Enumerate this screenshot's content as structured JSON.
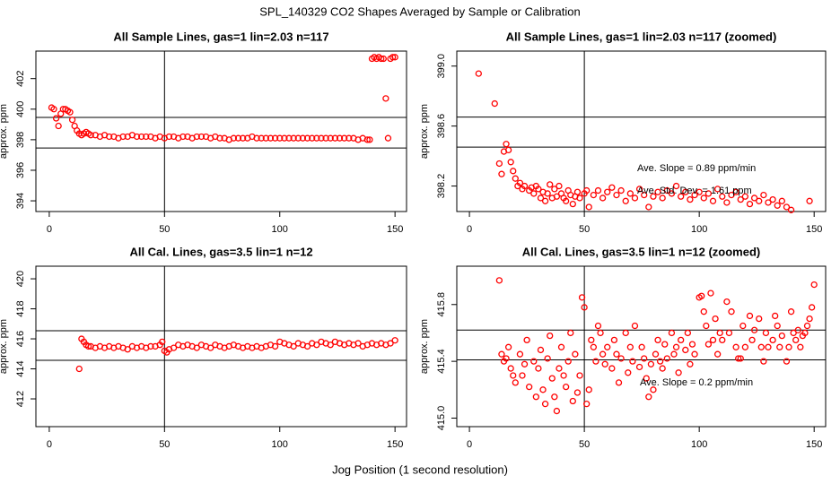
{
  "title": "SPL_140329  CO2 Shapes Averaged by Sample or Calibration",
  "xlabel": "Jog Position (1 second resolution)",
  "chart_data": [
    {
      "type": "scatter",
      "title": "All Sample Lines, gas=1 lin=2.03 n=117",
      "ylabel": "approx. ppm",
      "color": "#ff0000",
      "x": [
        1,
        2,
        3,
        4,
        5,
        6,
        7,
        8,
        9,
        10,
        11,
        12,
        13,
        14,
        15,
        16,
        17,
        18,
        20,
        22,
        24,
        26,
        28,
        30,
        32,
        34,
        36,
        38,
        40,
        42,
        44,
        46,
        48,
        50,
        52,
        54,
        56,
        58,
        60,
        62,
        64,
        66,
        68,
        70,
        72,
        74,
        76,
        78,
        80,
        82,
        84,
        86,
        88,
        90,
        92,
        94,
        96,
        98,
        100,
        102,
        104,
        106,
        108,
        110,
        112,
        114,
        116,
        118,
        120,
        122,
        124,
        126,
        128,
        130,
        132,
        134,
        136,
        138,
        139,
        140,
        141,
        142,
        143,
        144,
        145,
        146,
        147,
        148,
        149,
        150
      ],
      "y": [
        400.1,
        400.0,
        399.4,
        398.9,
        399.7,
        400.0,
        400.0,
        399.9,
        399.8,
        399.3,
        398.9,
        398.6,
        398.4,
        398.3,
        398.4,
        398.5,
        398.4,
        398.3,
        398.3,
        398.2,
        398.3,
        398.2,
        398.2,
        398.1,
        398.2,
        398.2,
        398.3,
        398.2,
        398.2,
        398.2,
        398.2,
        398.1,
        398.2,
        398.1,
        398.2,
        398.2,
        398.1,
        398.2,
        398.2,
        398.1,
        398.2,
        398.2,
        398.2,
        398.1,
        398.2,
        398.1,
        398.1,
        398.0,
        398.1,
        398.1,
        398.1,
        398.1,
        398.2,
        398.1,
        398.1,
        398.1,
        398.1,
        398.1,
        398.1,
        398.1,
        398.1,
        398.1,
        398.1,
        398.1,
        398.1,
        398.1,
        398.1,
        398.1,
        398.1,
        398.1,
        398.1,
        398.1,
        398.1,
        398.1,
        398.1,
        398.0,
        398.1,
        398.0,
        398.0,
        403.3,
        403.4,
        403.3,
        403.4,
        403.3,
        403.3,
        400.7,
        398.1,
        403.3,
        403.4,
        403.4
      ],
      "xlim": [
        -5.8,
        155
      ],
      "ylim": [
        393.3,
        403.8
      ],
      "xticks": [
        0,
        50,
        100,
        150
      ],
      "yticks": [
        394,
        396,
        398,
        400,
        402
      ],
      "hlines": [
        399.46,
        397.46
      ],
      "vlines": [
        50
      ],
      "annotations": []
    },
    {
      "type": "scatter",
      "title": "All Sample Lines, gas=1 lin=2.03 n=117 (zoomed)",
      "ylabel": "approx. ppm",
      "color": "#ff0000",
      "x": [
        4,
        11,
        13,
        14,
        15,
        16,
        17,
        18,
        19,
        20,
        21,
        22,
        23,
        24,
        26,
        27,
        28,
        29,
        30,
        31,
        32,
        33,
        34,
        35,
        36,
        37,
        38,
        39,
        40,
        41,
        42,
        43,
        44,
        45,
        46,
        47,
        48,
        50,
        51,
        52,
        54,
        56,
        58,
        60,
        62,
        64,
        66,
        68,
        70,
        72,
        74,
        76,
        78,
        80,
        82,
        84,
        86,
        88,
        90,
        92,
        94,
        96,
        98,
        100,
        102,
        104,
        106,
        108,
        110,
        112,
        114,
        116,
        118,
        120,
        122,
        124,
        126,
        128,
        130,
        132,
        134,
        136,
        138,
        140,
        148
      ],
      "y": [
        398.95,
        398.75,
        398.35,
        398.28,
        398.43,
        398.48,
        398.44,
        398.36,
        398.3,
        398.25,
        398.2,
        398.22,
        398.18,
        398.2,
        398.17,
        398.19,
        398.15,
        398.2,
        398.18,
        398.12,
        398.16,
        398.1,
        398.15,
        398.21,
        398.12,
        398.18,
        398.13,
        398.2,
        398.15,
        398.12,
        398.1,
        398.17,
        398.14,
        398.08,
        398.13,
        398.16,
        398.12,
        398.15,
        398.17,
        398.06,
        398.14,
        398.17,
        398.12,
        398.16,
        398.19,
        398.14,
        398.17,
        398.1,
        398.15,
        398.12,
        398.18,
        398.14,
        398.06,
        398.13,
        398.16,
        398.12,
        398.17,
        398.15,
        398.2,
        398.13,
        398.16,
        398.11,
        398.14,
        398.16,
        398.12,
        398.15,
        398.1,
        398.18,
        398.13,
        398.09,
        398.14,
        398.16,
        398.11,
        398.13,
        398.08,
        398.12,
        398.1,
        398.14,
        398.09,
        398.11,
        398.07,
        398.1,
        398.06,
        398.04,
        398.1
      ],
      "xlim": [
        -5.5,
        155
      ],
      "ylim": [
        398.03,
        399.1
      ],
      "xticks": [
        0,
        50,
        100,
        150
      ],
      "yticks": [
        398.2,
        {
          "value": 398.6,
          "label": "398.6"
        },
        {
          "value": 399,
          "label": "399.0"
        }
      ],
      "hlines": [
        398.66,
        398.46
      ],
      "vlines": [
        50
      ],
      "annotations": [
        "Ave. Slope =  0.89  ppm/min",
        "Ave. Std. Dev. =  1.61  ppm"
      ]
    },
    {
      "type": "scatter",
      "title": "All Cal. Lines, gas=3.5 lin=1 n=12",
      "ylabel": "approx. ppm",
      "color": "#ff0000",
      "x": [
        13,
        14,
        15,
        16,
        17,
        18,
        20,
        22,
        24,
        26,
        28,
        30,
        32,
        34,
        36,
        38,
        40,
        42,
        44,
        46,
        48,
        49,
        50,
        51,
        52,
        54,
        56,
        58,
        60,
        62,
        64,
        66,
        68,
        70,
        72,
        74,
        76,
        78,
        80,
        82,
        84,
        86,
        88,
        90,
        92,
        94,
        96,
        98,
        100,
        102,
        104,
        106,
        108,
        110,
        112,
        114,
        116,
        118,
        120,
        122,
        124,
        126,
        128,
        130,
        132,
        134,
        136,
        138,
        140,
        142,
        144,
        146,
        148,
        150
      ],
      "y": [
        414.0,
        416.0,
        415.8,
        415.6,
        415.5,
        415.5,
        415.4,
        415.5,
        415.4,
        415.5,
        415.4,
        415.5,
        415.4,
        415.3,
        415.5,
        415.4,
        415.5,
        415.4,
        415.5,
        415.5,
        415.6,
        415.8,
        415.2,
        415.1,
        415.3,
        415.4,
        415.6,
        415.5,
        415.6,
        415.5,
        415.4,
        415.6,
        415.5,
        415.4,
        415.6,
        415.5,
        415.4,
        415.5,
        415.6,
        415.5,
        415.4,
        415.5,
        415.4,
        415.5,
        415.4,
        415.5,
        415.6,
        415.5,
        415.8,
        415.7,
        415.6,
        415.5,
        415.7,
        415.6,
        415.5,
        415.7,
        415.6,
        415.8,
        415.7,
        415.6,
        415.8,
        415.7,
        415.6,
        415.7,
        415.6,
        415.7,
        415.5,
        415.6,
        415.7,
        415.6,
        415.7,
        415.6,
        415.7,
        415.9
      ],
      "xlim": [
        -5.8,
        155
      ],
      "ylim": [
        410.15,
        420.84
      ],
      "xticks": [
        0,
        50,
        100,
        150
      ],
      "yticks": [
        412,
        414,
        416,
        418,
        420
      ],
      "hlines": [
        416.54,
        414.57
      ],
      "vlines": [
        50
      ],
      "annotations": []
    },
    {
      "type": "scatter",
      "title": "All Cal. Lines, gas=3.5 lin=1 n=12 (zoomed)",
      "ylabel": "approx. ppm",
      "color": "#ff0000",
      "x": [
        13,
        14,
        15,
        16,
        17,
        18,
        19,
        20,
        22,
        23,
        24,
        25,
        26,
        28,
        29,
        30,
        31,
        32,
        33,
        34,
        35,
        36,
        37,
        38,
        39,
        40,
        41,
        42,
        43,
        44,
        45,
        46,
        47,
        48,
        49,
        50,
        51,
        52,
        53,
        54,
        55,
        56,
        57,
        58,
        59,
        60,
        62,
        63,
        64,
        65,
        66,
        68,
        69,
        70,
        71,
        72,
        74,
        75,
        76,
        77,
        78,
        79,
        80,
        81,
        82,
        83,
        84,
        85,
        86,
        88,
        89,
        90,
        91,
        92,
        94,
        95,
        96,
        97,
        98,
        100,
        101,
        102,
        103,
        104,
        105,
        106,
        107,
        108,
        109,
        110,
        112,
        113,
        114,
        116,
        117,
        118,
        119,
        120,
        122,
        123,
        124,
        126,
        127,
        128,
        129,
        130,
        132,
        133,
        134,
        135,
        136,
        138,
        139,
        140,
        141,
        142,
        143,
        144,
        145,
        146,
        147,
        148,
        149,
        150
      ],
      "y": [
        415.97,
        415.45,
        415.4,
        415.42,
        415.5,
        415.35,
        415.3,
        415.25,
        415.45,
        415.3,
        415.38,
        415.55,
        415.22,
        415.4,
        415.15,
        415.35,
        415.48,
        415.2,
        415.1,
        415.42,
        415.58,
        415.28,
        415.15,
        415.05,
        415.35,
        415.5,
        415.3,
        415.22,
        415.4,
        415.6,
        415.12,
        415.45,
        415.18,
        415.3,
        415.85,
        415.78,
        415.1,
        415.2,
        415.55,
        415.5,
        415.4,
        415.65,
        415.6,
        415.45,
        415.38,
        415.5,
        415.35,
        415.55,
        415.45,
        415.25,
        415.42,
        415.6,
        415.32,
        415.5,
        415.4,
        415.65,
        415.36,
        415.5,
        415.42,
        415.28,
        415.15,
        415.38,
        415.2,
        415.45,
        415.55,
        415.4,
        415.35,
        415.52,
        415.42,
        415.6,
        415.45,
        415.5,
        415.32,
        415.55,
        415.48,
        415.6,
        415.38,
        415.52,
        415.45,
        415.85,
        415.86,
        415.75,
        415.65,
        415.52,
        415.88,
        415.55,
        415.7,
        415.45,
        415.6,
        415.55,
        415.82,
        415.6,
        415.75,
        415.5,
        415.42,
        415.42,
        415.65,
        415.5,
        415.72,
        415.55,
        415.62,
        415.7,
        415.5,
        415.4,
        415.6,
        415.5,
        415.55,
        415.72,
        415.65,
        415.5,
        415.58,
        415.4,
        415.5,
        415.75,
        415.6,
        415.55,
        415.62,
        415.5,
        415.58,
        415.6,
        415.65,
        415.7,
        415.78,
        415.94
      ],
      "xlim": [
        -5.5,
        155
      ],
      "ylim": [
        414.94,
        416.07
      ],
      "xticks": [
        0,
        50,
        100,
        150
      ],
      "yticks": [
        {
          "value": 415,
          "label": "415.0"
        },
        415.4,
        415.8
      ],
      "hlines": [
        415.62,
        415.41
      ],
      "vlines": [
        50
      ],
      "annotations": [
        "Ave. Slope =  0.2  ppm/min"
      ]
    }
  ]
}
